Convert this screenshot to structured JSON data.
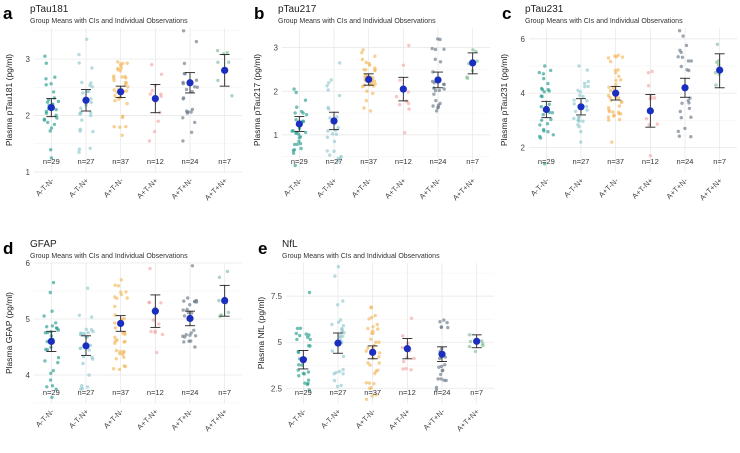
{
  "chart_data": [
    {
      "panel": "a",
      "type": "scatter",
      "title": "pTau181",
      "subtitle": "Group Means with CIs and Individual Observations",
      "xlabel": "",
      "ylabel": "Plasma pTau181 (pg/ml)",
      "ylim": [
        1.0,
        3.55
      ],
      "yticks": [
        1,
        2,
        3
      ],
      "categories": [
        "A-T-N-",
        "A-T-N+",
        "A+T-N-",
        "A+T-N+",
        "A+T+N-",
        "A+T+N+"
      ],
      "n_labels": [
        "n=29",
        "n=27",
        "n=37",
        "n=12",
        "n=24",
        "n=7"
      ],
      "n": [
        29,
        27,
        37,
        12,
        24,
        7
      ],
      "means": [
        2.14,
        2.27,
        2.42,
        2.3,
        2.58,
        2.8
      ],
      "ci_lower": [
        1.98,
        2.08,
        2.32,
        2.05,
        2.4,
        2.52
      ],
      "ci_upper": [
        2.3,
        2.46,
        2.52,
        2.55,
        2.76,
        3.08
      ],
      "ranges": [
        [
          1.25,
          3.05
        ],
        [
          1.35,
          3.35
        ],
        [
          1.65,
          2.95
        ],
        [
          1.55,
          2.9
        ],
        [
          1.55,
          3.5
        ],
        [
          2.35,
          3.15
        ]
      ]
    },
    {
      "panel": "b",
      "type": "scatter",
      "title": "pTau217",
      "subtitle": "Group Means with CIs and Individual Observations",
      "xlabel": "",
      "ylabel": "Plasma pTau217 (pg/ml)",
      "ylim": [
        0.15,
        3.45
      ],
      "yticks": [
        1,
        2,
        3
      ],
      "categories": [
        "A-T-N-",
        "A-T-N+",
        "A+T-N-",
        "A+T-N+",
        "A+T+N-",
        "A+T+N+"
      ],
      "n_labels": [
        "n=29",
        "n=27",
        "n=37",
        "n=12",
        "n=24",
        "n=7"
      ],
      "n": [
        29,
        27,
        37,
        12,
        24,
        7
      ],
      "means": [
        1.25,
        1.32,
        2.27,
        2.05,
        2.26,
        2.65
      ],
      "ci_lower": [
        1.08,
        1.12,
        2.14,
        1.78,
        2.08,
        2.4
      ],
      "ci_upper": [
        1.42,
        1.52,
        2.4,
        2.32,
        2.44,
        2.88
      ],
      "ranges": [
        [
          0.3,
          2.05
        ],
        [
          0.4,
          2.65
        ],
        [
          1.55,
          2.95
        ],
        [
          1.05,
          3.05
        ],
        [
          1.55,
          3.2
        ],
        [
          2.3,
          2.95
        ]
      ]
    },
    {
      "panel": "c",
      "type": "scatter",
      "title": "pTau231",
      "subtitle": "Group Means with CIs and Individual Observations",
      "xlabel": "",
      "ylabel": "Plasma pTau231 (pg/ml)",
      "ylim": [
        1.1,
        6.4
      ],
      "yticks": [
        2,
        4,
        6
      ],
      "categories": [
        "A-T-N-",
        "A-T-N+",
        "A+T-N-",
        "A+T-N+",
        "A+T+N-",
        "A+T+N+"
      ],
      "n_labels": [
        "n=29",
        "n=27",
        "n=37",
        "n=12",
        "n=24",
        "n=7"
      ],
      "n": [
        29,
        27,
        37,
        12,
        24,
        7
      ],
      "means": [
        3.4,
        3.5,
        4.0,
        3.35,
        4.2,
        4.85
      ],
      "ci_lower": [
        3.1,
        3.2,
        3.75,
        2.75,
        3.85,
        4.2
      ],
      "ci_upper": [
        3.7,
        3.8,
        4.25,
        3.95,
        4.55,
        5.45
      ],
      "ranges": [
        [
          1.4,
          5.0
        ],
        [
          2.2,
          5.0
        ],
        [
          2.2,
          5.4
        ],
        [
          1.7,
          4.8
        ],
        [
          2.4,
          6.3
        ],
        [
          4.3,
          5.8
        ]
      ]
    },
    {
      "panel": "d",
      "type": "scatter",
      "title": "GFAP",
      "subtitle": "Group Means with CIs and Individual Observations",
      "xlabel": "",
      "ylabel": "Plasma GFAP (pg/ml)",
      "ylim": [
        3.5,
        6.0
      ],
      "yticks": [
        4,
        5,
        6
      ],
      "categories": [
        "A-T-N-",
        "A-T-N+",
        "A+T-N-",
        "A+T-N+",
        "A+T+N-",
        "A+T+N+"
      ],
      "n_labels": [
        "n=29",
        "n=27",
        "n=37",
        "n=12",
        "n=24",
        "n=7"
      ],
      "n": [
        29,
        27,
        37,
        12,
        24,
        7
      ],
      "means": [
        4.6,
        4.52,
        4.92,
        5.14,
        5.01,
        5.33
      ],
      "ci_lower": [
        4.42,
        4.35,
        4.78,
        4.85,
        4.88,
        5.05
      ],
      "ci_upper": [
        4.78,
        4.7,
        5.06,
        5.43,
        5.14,
        5.6
      ],
      "ranges": [
        [
          3.6,
          5.65
        ],
        [
          3.75,
          5.55
        ],
        [
          4.1,
          5.7
        ],
        [
          4.4,
          5.9
        ],
        [
          4.5,
          5.95
        ],
        [
          5.05,
          5.85
        ]
      ]
    },
    {
      "panel": "e",
      "type": "scatter",
      "title": "NfL",
      "subtitle": "Group Means with CIs and Individual Observations",
      "xlabel": "",
      "ylabel": "Plasma NfL (pg/ml)",
      "ylim": [
        1.7,
        9.3
      ],
      "yticks": [
        2.5,
        5.0,
        7.5
      ],
      "categories": [
        "A-T-N-",
        "A-T-N+",
        "A+T-N-",
        "A+T-N+",
        "A+T+N-",
        "A+T+N+"
      ],
      "n_labels": [
        "n=29",
        "n=27",
        "n=37",
        "n=12",
        "n=24",
        "n=7"
      ],
      "n": [
        29,
        27,
        37,
        12,
        24,
        7
      ],
      "means": [
        4.05,
        4.95,
        4.45,
        4.65,
        4.35,
        5.05
      ],
      "ci_lower": [
        3.55,
        4.4,
        4.1,
        4.1,
        3.95,
        4.7
      ],
      "ci_upper": [
        4.55,
        5.5,
        4.8,
        5.2,
        4.75,
        5.4
      ],
      "ranges": [
        [
          2.4,
          7.7
        ],
        [
          2.6,
          9.1
        ],
        [
          1.9,
          6.9
        ],
        [
          3.5,
          6.3
        ],
        [
          2.4,
          6.2
        ],
        [
          4.5,
          5.4
        ]
      ]
    }
  ],
  "style": {
    "point_colors": [
      "#2a9d8f",
      "#8fc9cf",
      "#f2b75a",
      "#f4a8a8",
      "#6c7a89",
      "#7fbf97"
    ],
    "mean_color": "#1a2fbf",
    "errorbar_color": "#222222",
    "grid_color": "#e6e6e6"
  }
}
